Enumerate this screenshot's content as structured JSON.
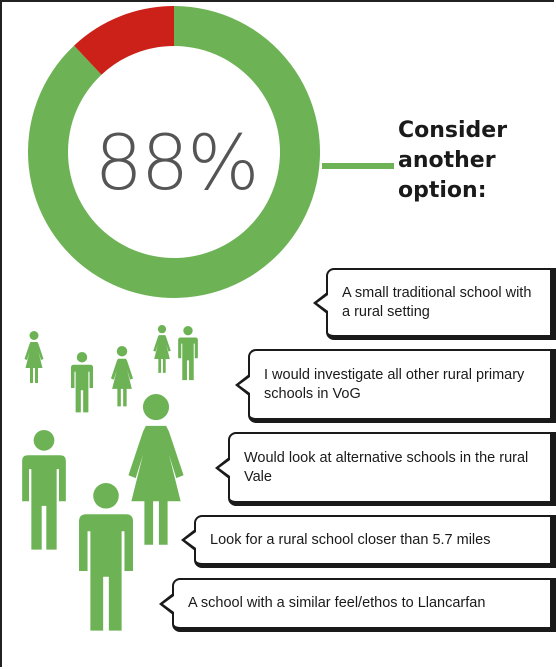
{
  "chart_data": {
    "type": "pie",
    "style": "donut",
    "center_label": "88%",
    "slices": [
      {
        "value": 88,
        "color": "#6db356"
      },
      {
        "value": 12,
        "color": "#cc2119"
      }
    ]
  },
  "headline": {
    "line1": "Consider",
    "line2": "another",
    "line3": "option:"
  },
  "responses": [
    {
      "text": "A small traditional school with a rural setting"
    },
    {
      "text": "I would investigate all other rural primary schools in VoG"
    },
    {
      "text": "Would look at alternative schools in the rural Vale"
    },
    {
      "text": "Look for a rural school closer than 5.7 miles"
    },
    {
      "text": "A school with a similar feel/ethos to Llancarfan"
    }
  ],
  "colors": {
    "accent": "#6db356",
    "highlight": "#cc2119",
    "people": "#6db356"
  }
}
